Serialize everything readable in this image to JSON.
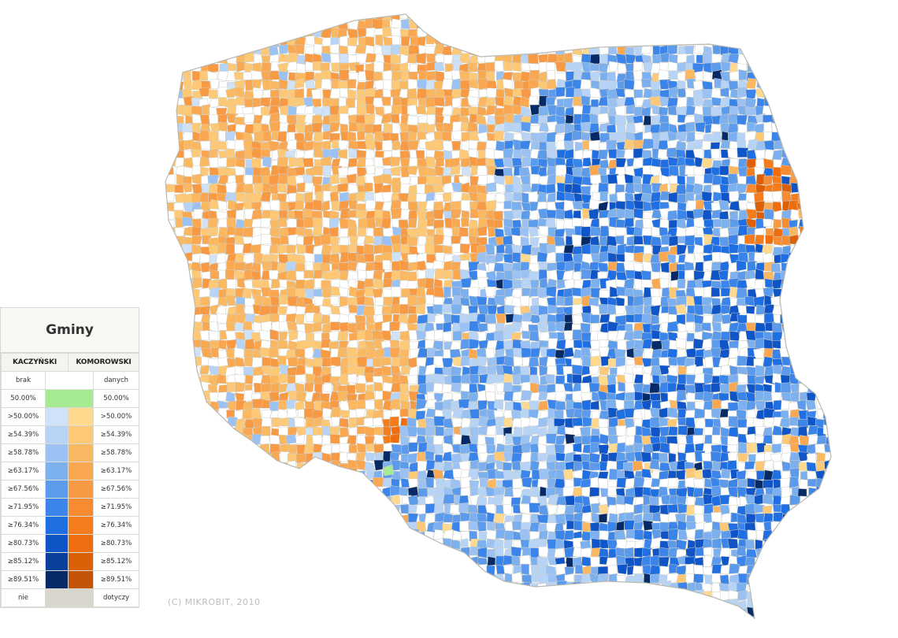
{
  "legend": {
    "title": "Gminy",
    "header_left": "KACZYŃSKI",
    "header_right": "KOMOROWSKI",
    "no_data_left": "brak",
    "no_data_right": "danych",
    "tie_left": "50.00%",
    "tie_right": "50.00%",
    "tie_color": "#a6eb94",
    "not_applicable_left": "nie",
    "not_applicable_right": "dotyczy",
    "not_applicable_color": "#d8d6cc",
    "rows": [
      {
        "label": ">50.00%",
        "kaczynski_color": "#cfe2f8",
        "komorowski_color": "#ffd98e"
      },
      {
        "label": "≥54.39%",
        "kaczynski_color": "#b7d4f6",
        "komorowski_color": "#fdc976"
      },
      {
        "label": "≥58.78%",
        "kaczynski_color": "#9bc2f2",
        "komorowski_color": "#fbb862"
      },
      {
        "label": "≥63.17%",
        "kaczynski_color": "#7cb0ef",
        "komorowski_color": "#f9a851"
      },
      {
        "label": "≥67.56%",
        "kaczynski_color": "#5c9aec",
        "komorowski_color": "#f89944"
      },
      {
        "label": "≥71.95%",
        "kaczynski_color": "#3a84ea",
        "komorowski_color": "#f78b32"
      },
      {
        "label": "≥76.34%",
        "kaczynski_color": "#1f6ee2",
        "komorowski_color": "#f47c1c"
      },
      {
        "label": "≥80.73%",
        "kaczynski_color": "#0f55c7",
        "komorowski_color": "#ee6e0f"
      },
      {
        "label": "≥85.12%",
        "kaczynski_color": "#0a3f9c",
        "komorowski_color": "#db6008"
      },
      {
        "label": "≥89.51%",
        "kaczynski_color": "#062a66",
        "komorowski_color": "#c45405"
      }
    ]
  },
  "map": {
    "copyright": "(C) MIKROBIT, 2010",
    "border_color": "#cfcfc6",
    "empty_color": "#ffffff"
  }
}
